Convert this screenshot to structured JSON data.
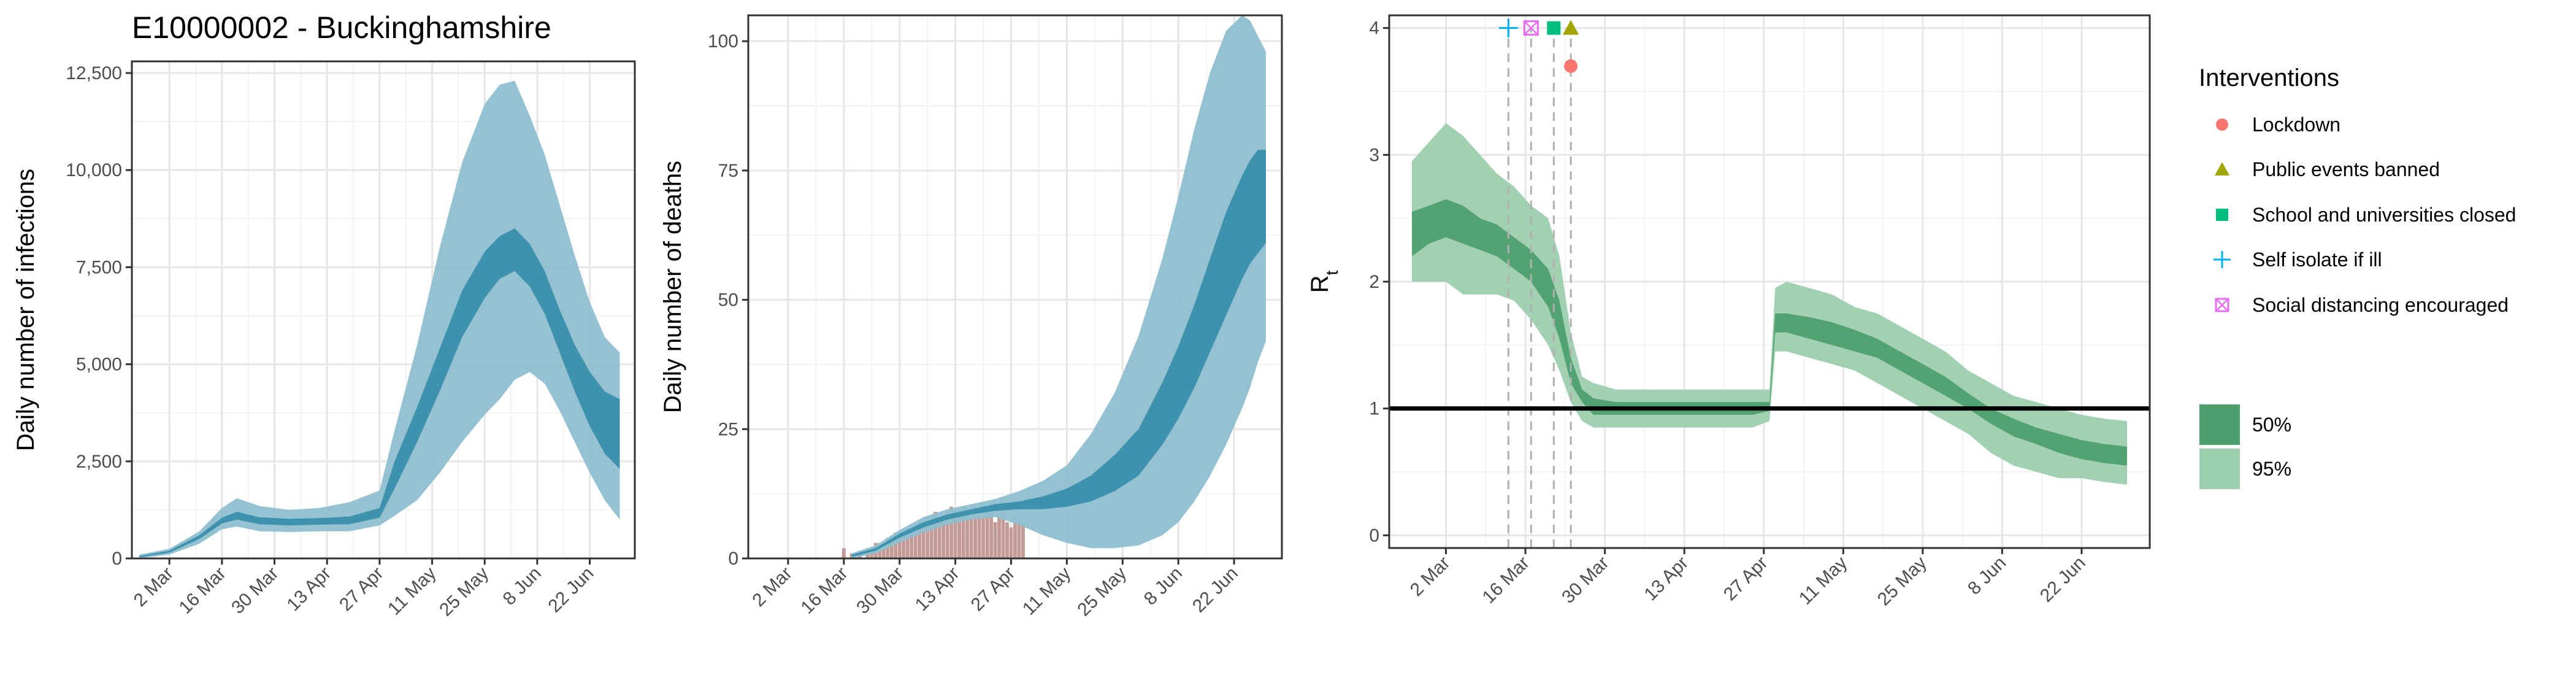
{
  "title": "E10000002 - Buckinghamshire",
  "colors": {
    "band_outer": "#8ebfd0",
    "band_inner": "#3a8fac",
    "rt_outer": "#9ccfae",
    "rt_inner": "#4f9f6e",
    "death_bars": "#c49a96",
    "grid_major": "#e6e6e6",
    "grid_minor": "#f2f2f2",
    "panel_border": "#333333",
    "vline": "#b0b0b0",
    "lockdown": "#f8766d",
    "public_events": "#a3a500",
    "schools": "#00bf7d",
    "self_isolate": "#00b0f6",
    "social_distancing": "#e76bf3"
  },
  "chart_data": [
    {
      "type": "area",
      "name": "infections",
      "xlabel": "",
      "ylabel": "Daily number of infections",
      "x_range": [
        -10,
        124
      ],
      "ylim": [
        0,
        12800
      ],
      "y_ticks": [
        0,
        2500,
        5000,
        7500,
        10000,
        12500
      ],
      "y_tick_labels": [
        "0",
        "2,500",
        "5,000",
        "7,500",
        "10,000",
        "12,500"
      ],
      "x_ticks": [
        0,
        14,
        28,
        42,
        56,
        70,
        84,
        98,
        112
      ],
      "x_tick_labels": [
        "2 Mar",
        "16 Mar",
        "30 Mar",
        "13 Apr",
        "27 Apr",
        "11 May",
        "25 May",
        "8 Jun",
        "22 Jun"
      ],
      "x_day_zero": "2 Mar",
      "series": [
        {
          "band": "95%",
          "x": [
            -8,
            0,
            8,
            14,
            18,
            24,
            32,
            40,
            48,
            56,
            60,
            66,
            72,
            78,
            84,
            88,
            92,
            96,
            100,
            104,
            108,
            112,
            116,
            120
          ],
          "lower": [
            0,
            100,
            380,
            750,
            820,
            700,
            680,
            700,
            700,
            850,
            1100,
            1500,
            2200,
            3000,
            3700,
            4100,
            4600,
            4800,
            4500,
            3800,
            3000,
            2200,
            1500,
            1000
          ],
          "upper": [
            100,
            250,
            700,
            1300,
            1550,
            1350,
            1250,
            1300,
            1450,
            1750,
            3300,
            5500,
            8000,
            10200,
            11700,
            12200,
            12300,
            11400,
            10400,
            9100,
            7800,
            6600,
            5700,
            5300
          ]
        },
        {
          "band": "50%",
          "x": [
            -8,
            0,
            8,
            14,
            18,
            24,
            32,
            40,
            48,
            56,
            60,
            66,
            72,
            78,
            84,
            88,
            92,
            96,
            100,
            104,
            108,
            112,
            116,
            120
          ],
          "lower": [
            30,
            150,
            500,
            900,
            1000,
            880,
            850,
            870,
            880,
            1050,
            1800,
            3000,
            4300,
            5700,
            6700,
            7200,
            7400,
            7000,
            6300,
            5300,
            4300,
            3400,
            2700,
            2300
          ],
          "upper": [
            60,
            200,
            600,
            1050,
            1200,
            1060,
            1020,
            1040,
            1080,
            1300,
            2500,
            3900,
            5400,
            6900,
            7900,
            8300,
            8500,
            8100,
            7400,
            6400,
            5500,
            4800,
            4300,
            4100
          ]
        }
      ]
    },
    {
      "type": "area",
      "name": "deaths",
      "xlabel": "",
      "ylabel": "Daily number of deaths",
      "x_range": [
        -10,
        124
      ],
      "ylim": [
        0,
        105
      ],
      "y_ticks": [
        0,
        25,
        50,
        75,
        100
      ],
      "y_tick_labels": [
        "0",
        "25",
        "50",
        "75",
        "100"
      ],
      "x_ticks": [
        0,
        14,
        28,
        42,
        56,
        70,
        84,
        98,
        112
      ],
      "x_tick_labels": [
        "2 Mar",
        "16 Mar",
        "30 Mar",
        "13 Apr",
        "27 Apr",
        "11 May",
        "25 May",
        "8 Jun",
        "22 Jun"
      ],
      "x_day_zero": "2 Mar",
      "bars": {
        "days": [
          14,
          16,
          18,
          20,
          21,
          22,
          23,
          24,
          25,
          26,
          27,
          28,
          29,
          30,
          31,
          32,
          33,
          34,
          35,
          36,
          37,
          38,
          39,
          40,
          41,
          42,
          43,
          44,
          45,
          46,
          47,
          48,
          49,
          50,
          51,
          52,
          53,
          54,
          55,
          56,
          57,
          58,
          59
        ],
        "values": [
          2,
          1,
          1,
          2,
          2,
          3,
          3,
          2,
          4,
          3,
          5,
          4,
          5,
          6,
          5,
          6,
          7,
          6,
          8,
          7,
          9,
          8,
          7,
          9,
          10,
          8,
          9,
          10,
          9,
          8,
          10,
          9,
          8,
          10,
          9,
          7,
          8,
          9,
          7,
          6,
          8,
          7,
          7
        ]
      },
      "series": [
        {
          "band": "95%",
          "x": [
            16,
            22,
            28,
            34,
            40,
            46,
            52,
            58,
            64,
            70,
            76,
            82,
            88,
            94,
            98,
            102,
            106,
            110,
            114,
            116,
            118,
            120
          ],
          "lower": [
            0,
            1,
            3,
            5,
            6.5,
            7.5,
            8,
            6.5,
            4.5,
            3,
            2,
            2,
            2.5,
            4.5,
            7,
            11,
            16,
            22,
            29,
            33,
            38,
            42
          ],
          "upper": [
            1,
            2.5,
            5.5,
            8,
            9.5,
            10.5,
            11.5,
            13,
            15,
            18,
            24,
            32,
            43,
            58,
            70,
            83,
            94,
            102,
            105,
            104,
            101,
            98
          ]
        },
        {
          "band": "50%",
          "x": [
            16,
            22,
            28,
            34,
            40,
            46,
            52,
            58,
            64,
            70,
            76,
            82,
            88,
            94,
            98,
            102,
            106,
            110,
            114,
            116,
            118,
            120
          ],
          "lower": [
            0.3,
            1.5,
            4,
            6,
            7.5,
            8.5,
            9.2,
            9.5,
            9.5,
            10,
            11,
            13,
            16,
            22,
            27,
            33,
            40,
            47,
            54,
            57,
            59,
            61
          ],
          "upper": [
            0.7,
            2,
            4.8,
            7,
            8.5,
            9.5,
            10.5,
            11,
            12,
            13.5,
            16,
            20,
            25,
            34,
            41,
            49,
            58,
            67,
            74,
            77,
            79,
            79
          ]
        }
      ]
    },
    {
      "type": "area",
      "name": "rt",
      "xlabel": "",
      "ylabel": "R",
      "ylabel_subscript": "t",
      "x_range": [
        -10,
        124
      ],
      "ylim": [
        -0.1,
        4.1
      ],
      "y_ticks": [
        0,
        1,
        2,
        3,
        4
      ],
      "y_tick_labels": [
        "0",
        "1",
        "2",
        "3",
        "4"
      ],
      "x_ticks": [
        0,
        14,
        28,
        42,
        56,
        70,
        84,
        98,
        112
      ],
      "x_tick_labels": [
        "2 Mar",
        "16 Mar",
        "30 Mar",
        "13 Apr",
        "27 Apr",
        "11 May",
        "25 May",
        "8 Jun",
        "22 Jun"
      ],
      "x_day_zero": "2 Mar",
      "reference_line": 1,
      "interventions": [
        {
          "name": "Lockdown",
          "day": 22,
          "y": 3.7,
          "shape": "circle"
        },
        {
          "name": "Public events banned",
          "day": 22,
          "y": 4.0,
          "shape": "triangle"
        },
        {
          "name": "School and universities closed",
          "day": 19,
          "y": 4.0,
          "shape": "square"
        },
        {
          "name": "Self isolate if ill",
          "day": 11,
          "y": 4.0,
          "shape": "plus"
        },
        {
          "name": "Social distancing encouraged",
          "day": 15,
          "y": 4.0,
          "shape": "boxx"
        }
      ],
      "series": [
        {
          "band": "95%",
          "x": [
            -6,
            -3,
            0,
            3,
            6,
            9,
            12,
            15,
            18,
            20,
            22,
            24,
            26,
            30,
            34,
            38,
            42,
            46,
            50,
            54,
            57,
            58,
            60,
            64,
            68,
            72,
            76,
            80,
            84,
            88,
            92,
            96,
            100,
            104,
            108,
            112,
            116,
            120
          ],
          "lower": [
            2.0,
            2.0,
            2.0,
            1.9,
            1.9,
            1.9,
            1.85,
            1.7,
            1.5,
            1.3,
            1.05,
            0.9,
            0.85,
            0.85,
            0.85,
            0.85,
            0.85,
            0.85,
            0.85,
            0.85,
            0.9,
            1.45,
            1.45,
            1.4,
            1.35,
            1.3,
            1.2,
            1.1,
            1.0,
            0.9,
            0.8,
            0.65,
            0.55,
            0.5,
            0.45,
            0.45,
            0.42,
            0.4
          ],
          "upper": [
            2.95,
            3.1,
            3.25,
            3.15,
            3.0,
            2.85,
            2.75,
            2.6,
            2.5,
            2.2,
            1.6,
            1.25,
            1.2,
            1.15,
            1.15,
            1.15,
            1.15,
            1.15,
            1.15,
            1.15,
            1.15,
            1.95,
            2.0,
            1.95,
            1.9,
            1.8,
            1.75,
            1.65,
            1.55,
            1.45,
            1.3,
            1.2,
            1.1,
            1.05,
            1.0,
            0.95,
            0.92,
            0.9
          ]
        },
        {
          "band": "50%",
          "x": [
            -6,
            -3,
            0,
            3,
            6,
            9,
            12,
            15,
            18,
            20,
            22,
            24,
            26,
            30,
            34,
            38,
            42,
            46,
            50,
            54,
            57,
            58,
            60,
            64,
            68,
            72,
            76,
            80,
            84,
            88,
            92,
            96,
            100,
            104,
            108,
            112,
            116,
            120
          ],
          "lower": [
            2.2,
            2.3,
            2.35,
            2.3,
            2.25,
            2.2,
            2.1,
            2.0,
            1.8,
            1.55,
            1.2,
            1.05,
            0.95,
            0.95,
            0.95,
            0.95,
            0.95,
            0.95,
            0.95,
            0.95,
            0.98,
            1.6,
            1.6,
            1.55,
            1.5,
            1.45,
            1.4,
            1.3,
            1.2,
            1.1,
            1.0,
            0.88,
            0.78,
            0.72,
            0.65,
            0.6,
            0.57,
            0.55
          ]
        },
        {
          "band": "50%-upper",
          "x": [],
          "lower": [],
          "upper": []
        }
      ],
      "rt_inner_upper": [
        2.55,
        2.6,
        2.65,
        2.6,
        2.5,
        2.45,
        2.35,
        2.25,
        2.1,
        1.85,
        1.4,
        1.15,
        1.08,
        1.05,
        1.05,
        1.05,
        1.05,
        1.05,
        1.05,
        1.05,
        1.05,
        1.75,
        1.75,
        1.72,
        1.68,
        1.62,
        1.55,
        1.45,
        1.35,
        1.25,
        1.12,
        1.0,
        0.92,
        0.85,
        0.8,
        0.75,
        0.72,
        0.7
      ]
    }
  ],
  "legend": {
    "interventions_title": "Interventions",
    "interventions": [
      {
        "label": "Lockdown",
        "shape": "circle",
        "color_key": "lockdown"
      },
      {
        "label": "Public events banned",
        "shape": "triangle",
        "color_key": "public_events"
      },
      {
        "label": "School and universities closed",
        "shape": "square",
        "color_key": "schools"
      },
      {
        "label": "Self isolate if ill",
        "shape": "plus",
        "color_key": "self_isolate"
      },
      {
        "label": "Social distancing encouraged",
        "shape": "boxx",
        "color_key": "social_distancing"
      }
    ],
    "bands": [
      {
        "label": "50%",
        "color_key": "rt_inner"
      },
      {
        "label": "95%",
        "color_key": "rt_outer"
      }
    ]
  }
}
